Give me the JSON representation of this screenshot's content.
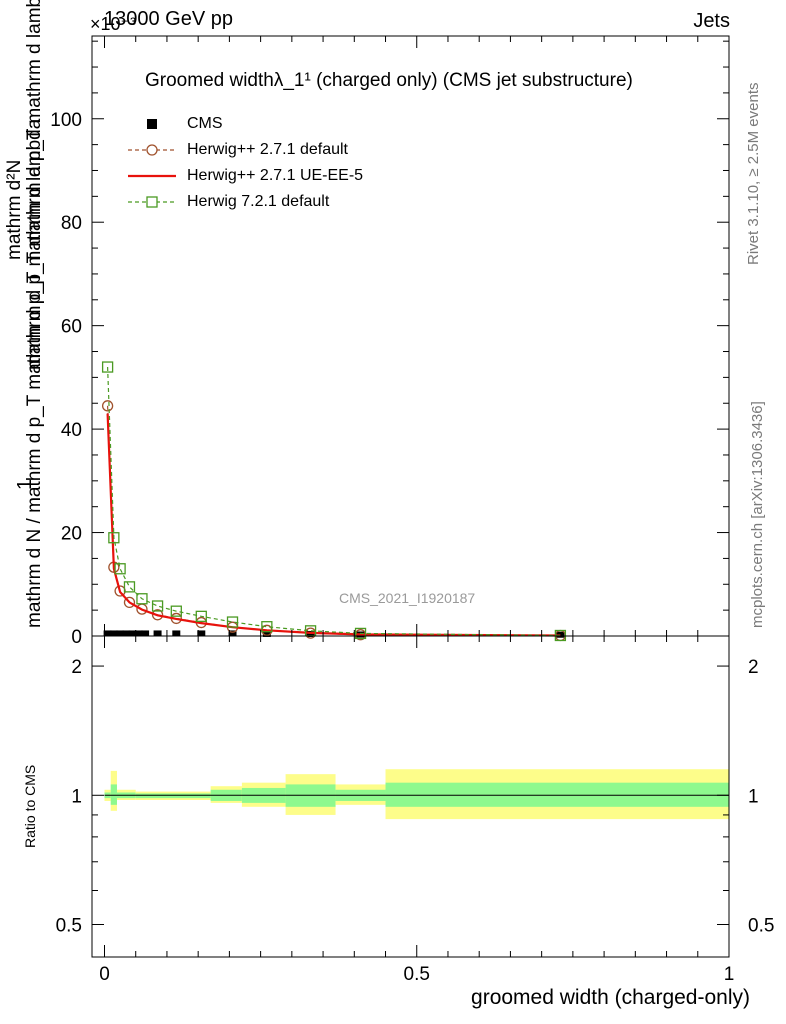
{
  "header": {
    "energy_label": "13000 GeV pp",
    "scale_exponent": "×10⁻³",
    "process_label": "Jets"
  },
  "side_labels": {
    "rivet": "Rivet 3.1.10, ≥ 2.5M events",
    "mcplots": "mcplots.cern.ch [arXiv:1306.3436]"
  },
  "chart_data": {
    "type": "line",
    "title": "Groomed widthλ_1¹ (charged only) (CMS jet substructure)",
    "watermark": "CMS_2021_I1920187",
    "ylabel_main": "1 / (mathrm d N / mathrm d p_T mathrm d p_T mathrm d lambda) · mathrm d²N / mathrm d p_T mathrm d lambda",
    "ylabel_numerator": "mathrm d²N",
    "ylabel_denominator": "mathrm d p_T mathrm d p_T mathrm d lambda",
    "ylabel_inv_num": "1",
    "ylabel_inv_den": "mathrm d N / mathrm d p_T mathrm d p_T mathrm d lambda",
    "xlabel": "groomed width (charged-only)",
    "ratio_ylabel": "Ratio to CMS",
    "xlim": [
      -0.02,
      1.0
    ],
    "ylim_main": [
      0,
      116
    ],
    "ylim_ratio": [
      0.42,
      2.35
    ],
    "x_ticks": [
      "0",
      "0.5",
      "1"
    ],
    "y_ticks_main": [
      "0",
      "20",
      "40",
      "60",
      "80",
      "100"
    ],
    "y_ticks_ratio": [
      "0.5",
      "1",
      "2"
    ],
    "legend": {
      "position": "top-left",
      "entries": [
        "CMS",
        "Herwig++ 2.7.1 default",
        "Herwig++ 2.7.1 UE-EE-5",
        "Herwig 7.2.1 default"
      ]
    },
    "series": [
      {
        "name": "CMS",
        "color": "#000000",
        "marker": "square-filled",
        "x": [
          0.005,
          0.015,
          0.025,
          0.035,
          0.045,
          0.055,
          0.065,
          0.085,
          0.115,
          0.155,
          0.205,
          0.26,
          0.33,
          0.41,
          0.73
        ],
        "y": [
          0.3,
          0.3,
          0.3,
          0.3,
          0.3,
          0.3,
          0.3,
          0.3,
          0.3,
          0.3,
          0.3,
          0.2,
          0.2,
          0.1,
          0.05
        ]
      },
      {
        "name": "Herwig++ 2.7.1 default",
        "color": "#a0522d",
        "marker": "circle-open",
        "x": [
          0.005,
          0.015,
          0.025,
          0.04,
          0.06,
          0.085,
          0.115,
          0.155,
          0.205,
          0.26,
          0.33,
          0.41,
          0.73
        ],
        "y": [
          44.5,
          13.3,
          8.7,
          6.5,
          5.2,
          4.1,
          3.4,
          2.6,
          1.7,
          1.1,
          0.55,
          0.25,
          0.1
        ]
      },
      {
        "name": "Herwig++ 2.7.1 UE-EE-5",
        "color": "#e8120c",
        "marker": "line",
        "x": [
          0.005,
          0.015,
          0.025,
          0.04,
          0.06,
          0.085,
          0.115,
          0.155,
          0.205,
          0.26,
          0.33,
          0.41,
          0.73
        ],
        "y": [
          43.0,
          13.0,
          8.5,
          6.5,
          5.1,
          4.0,
          3.3,
          2.5,
          1.7,
          1.1,
          0.6,
          0.3,
          0.1
        ]
      },
      {
        "name": "Herwig 7.2.1 default",
        "color": "#4a9a22",
        "marker": "square-open",
        "x": [
          0.005,
          0.015,
          0.025,
          0.04,
          0.06,
          0.085,
          0.115,
          0.155,
          0.205,
          0.26,
          0.33,
          0.41,
          0.73
        ],
        "y": [
          52.0,
          19.0,
          13.0,
          9.5,
          7.2,
          5.8,
          4.8,
          3.8,
          2.7,
          1.8,
          1.0,
          0.5,
          0.1
        ]
      }
    ],
    "ratio_bands": {
      "color_inner": "#8ef98e",
      "color_outer": "#fdfd8a",
      "bins": [
        {
          "x0": 0.0,
          "x1": 0.01,
          "in_lo": 0.985,
          "in_hi": 1.015,
          "out_lo": 0.97,
          "out_hi": 1.03
        },
        {
          "x0": 0.01,
          "x1": 0.02,
          "in_lo": 0.95,
          "in_hi": 1.06,
          "out_lo": 0.92,
          "out_hi": 1.14
        },
        {
          "x0": 0.02,
          "x1": 0.05,
          "in_lo": 0.985,
          "in_hi": 1.015,
          "out_lo": 0.975,
          "out_hi": 1.03
        },
        {
          "x0": 0.05,
          "x1": 0.17,
          "in_lo": 0.985,
          "in_hi": 1.01,
          "out_lo": 0.975,
          "out_hi": 1.02
        },
        {
          "x0": 0.17,
          "x1": 0.22,
          "in_lo": 0.97,
          "in_hi": 1.03,
          "out_lo": 0.96,
          "out_hi": 1.05
        },
        {
          "x0": 0.22,
          "x1": 0.29,
          "in_lo": 0.96,
          "in_hi": 1.04,
          "out_lo": 0.94,
          "out_hi": 1.07
        },
        {
          "x0": 0.29,
          "x1": 0.37,
          "in_lo": 0.94,
          "in_hi": 1.06,
          "out_lo": 0.9,
          "out_hi": 1.12
        },
        {
          "x0": 0.37,
          "x1": 0.45,
          "in_lo": 0.97,
          "in_hi": 1.03,
          "out_lo": 0.95,
          "out_hi": 1.06
        },
        {
          "x0": 0.45,
          "x1": 1.0,
          "in_lo": 0.94,
          "in_hi": 1.07,
          "out_lo": 0.88,
          "out_hi": 1.15
        }
      ]
    }
  }
}
